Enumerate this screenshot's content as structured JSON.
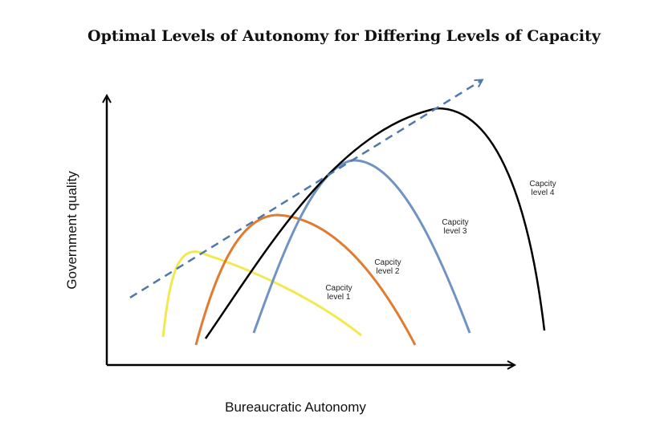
{
  "title": "Optimal Levels of Autonomy for Differing Levels of Capacity",
  "axes": {
    "y_label": "Government quality",
    "x_label": "Bureaucratic Autonomy"
  },
  "curves": [
    {
      "id": "level1",
      "color": "#f2e94e",
      "label_line1": "Capcity",
      "label_line2": "level 1"
    },
    {
      "id": "level2",
      "color": "#e07b2f",
      "label_line1": "Capcity",
      "label_line2": "level 2"
    },
    {
      "id": "level3",
      "color": "#6f93c2",
      "label_line1": "Capcity",
      "label_line2": "level 3"
    },
    {
      "id": "level4",
      "color": "#000000",
      "label_line1": "Capcity",
      "label_line2": "level 4"
    }
  ],
  "optimum_line": {
    "color": "#4f78ac",
    "style": "dashed"
  }
}
